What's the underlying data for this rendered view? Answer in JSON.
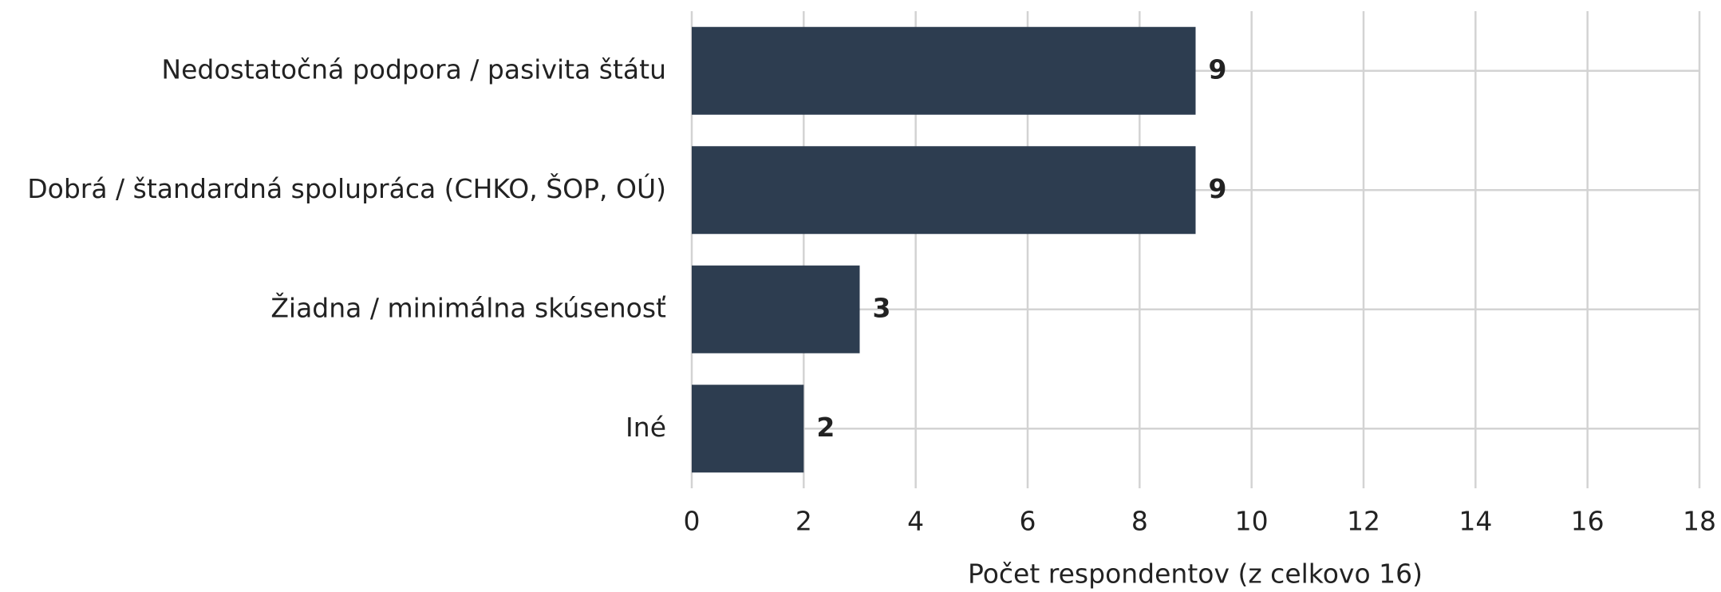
{
  "chart_data": {
    "type": "bar",
    "orientation": "horizontal",
    "xlabel": "Počet respondentov (z celkovo 16)",
    "categories": [
      "Nedostatočná podpora / pasivita štátu",
      "Dobrá / štandardná spolupráca (CHKO, ŠOP, OÚ)",
      "Žiadna / minimálna skúsenosť",
      "Iné"
    ],
    "values": [
      9,
      9,
      3,
      2
    ],
    "color": "#2d3d50",
    "xlim": [
      0,
      18
    ],
    "xticks": [
      0,
      2,
      4,
      6,
      8,
      10,
      12,
      14,
      16,
      18
    ],
    "grid": true
  }
}
